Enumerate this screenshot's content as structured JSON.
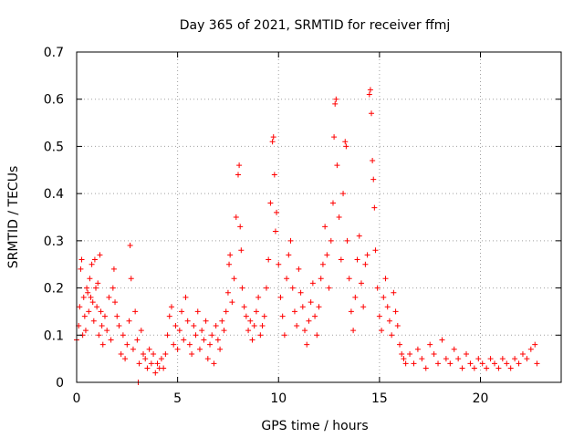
{
  "chart_data": {
    "type": "scatter",
    "title": "Day 365 of 2021, SRMTID for receiver ffmj",
    "xlabel": "GPS time / hours",
    "ylabel": "SRMTID / TECUs",
    "xlim": [
      0,
      24
    ],
    "ylim": [
      0,
      0.7
    ],
    "xticks": [
      0,
      5,
      10,
      15,
      20
    ],
    "xtick_labels": [
      "0",
      "5",
      "10",
      "15",
      "20"
    ],
    "yticks": [
      0,
      0.1,
      0.2,
      0.3,
      0.4,
      0.5,
      0.6,
      0.7
    ],
    "ytick_labels": [
      "0",
      "0.1",
      "0.2",
      "0.3",
      "0.4",
      "0.5",
      "0.6",
      "0.7"
    ],
    "grid": true,
    "marker": "+",
    "marker_color": "#ff0000",
    "series": [
      {
        "name": "SRMTID",
        "points": [
          [
            0.0,
            0.09
          ],
          [
            0.1,
            0.12
          ],
          [
            0.15,
            0.16
          ],
          [
            0.2,
            0.24
          ],
          [
            0.25,
            0.26
          ],
          [
            0.3,
            0.1
          ],
          [
            0.35,
            0.18
          ],
          [
            0.4,
            0.14
          ],
          [
            0.45,
            0.11
          ],
          [
            0.5,
            0.2
          ],
          [
            0.55,
            0.19
          ],
          [
            0.6,
            0.15
          ],
          [
            0.65,
            0.22
          ],
          [
            0.7,
            0.18
          ],
          [
            0.75,
            0.25
          ],
          [
            0.8,
            0.17
          ],
          [
            0.85,
            0.13
          ],
          [
            0.9,
            0.26
          ],
          [
            0.95,
            0.2
          ],
          [
            1.0,
            0.16
          ],
          [
            1.05,
            0.21
          ],
          [
            1.1,
            0.1
          ],
          [
            1.15,
            0.27
          ],
          [
            1.2,
            0.15
          ],
          [
            1.25,
            0.12
          ],
          [
            1.3,
            0.08
          ],
          [
            1.4,
            0.14
          ],
          [
            1.5,
            0.11
          ],
          [
            1.6,
            0.18
          ],
          [
            1.7,
            0.09
          ],
          [
            1.8,
            0.2
          ],
          [
            1.85,
            0.24
          ],
          [
            1.9,
            0.17
          ],
          [
            2.0,
            0.14
          ],
          [
            2.1,
            0.12
          ],
          [
            2.2,
            0.06
          ],
          [
            2.3,
            0.1
          ],
          [
            2.4,
            0.05
          ],
          [
            2.5,
            0.08
          ],
          [
            2.6,
            0.13
          ],
          [
            2.65,
            0.29
          ],
          [
            2.7,
            0.22
          ],
          [
            2.8,
            0.07
          ],
          [
            2.9,
            0.15
          ],
          [
            3.0,
            0.09
          ],
          [
            3.05,
            0.0
          ],
          [
            3.1,
            0.04
          ],
          [
            3.2,
            0.11
          ],
          [
            3.3,
            0.06
          ],
          [
            3.4,
            0.05
          ],
          [
            3.5,
            0.03
          ],
          [
            3.6,
            0.07
          ],
          [
            3.7,
            0.04
          ],
          [
            3.8,
            0.06
          ],
          [
            3.9,
            0.02
          ],
          [
            4.0,
            0.04
          ],
          [
            4.1,
            0.03
          ],
          [
            4.2,
            0.05
          ],
          [
            4.3,
            0.03
          ],
          [
            4.4,
            0.06
          ],
          [
            4.5,
            0.1
          ],
          [
            4.6,
            0.14
          ],
          [
            4.7,
            0.16
          ],
          [
            4.8,
            0.08
          ],
          [
            4.9,
            0.12
          ],
          [
            5.0,
            0.07
          ],
          [
            5.1,
            0.11
          ],
          [
            5.2,
            0.15
          ],
          [
            5.3,
            0.09
          ],
          [
            5.4,
            0.18
          ],
          [
            5.5,
            0.13
          ],
          [
            5.6,
            0.08
          ],
          [
            5.7,
            0.06
          ],
          [
            5.8,
            0.12
          ],
          [
            5.9,
            0.1
          ],
          [
            6.0,
            0.15
          ],
          [
            6.1,
            0.07
          ],
          [
            6.2,
            0.11
          ],
          [
            6.3,
            0.09
          ],
          [
            6.4,
            0.13
          ],
          [
            6.5,
            0.05
          ],
          [
            6.6,
            0.08
          ],
          [
            6.7,
            0.1
          ],
          [
            6.8,
            0.04
          ],
          [
            6.9,
            0.12
          ],
          [
            7.0,
            0.09
          ],
          [
            7.1,
            0.07
          ],
          [
            7.2,
            0.13
          ],
          [
            7.3,
            0.11
          ],
          [
            7.4,
            0.15
          ],
          [
            7.5,
            0.19
          ],
          [
            7.55,
            0.25
          ],
          [
            7.6,
            0.27
          ],
          [
            7.7,
            0.17
          ],
          [
            7.8,
            0.22
          ],
          [
            7.9,
            0.35
          ],
          [
            8.0,
            0.44
          ],
          [
            8.05,
            0.46
          ],
          [
            8.1,
            0.33
          ],
          [
            8.15,
            0.28
          ],
          [
            8.2,
            0.2
          ],
          [
            8.3,
            0.16
          ],
          [
            8.4,
            0.14
          ],
          [
            8.5,
            0.11
          ],
          [
            8.6,
            0.13
          ],
          [
            8.7,
            0.09
          ],
          [
            8.8,
            0.12
          ],
          [
            8.9,
            0.15
          ],
          [
            9.0,
            0.18
          ],
          [
            9.1,
            0.1
          ],
          [
            9.2,
            0.12
          ],
          [
            9.3,
            0.14
          ],
          [
            9.4,
            0.2
          ],
          [
            9.5,
            0.26
          ],
          [
            9.6,
            0.38
          ],
          [
            9.7,
            0.51
          ],
          [
            9.75,
            0.52
          ],
          [
            9.8,
            0.44
          ],
          [
            9.85,
            0.32
          ],
          [
            9.9,
            0.36
          ],
          [
            10.0,
            0.25
          ],
          [
            10.1,
            0.18
          ],
          [
            10.2,
            0.14
          ],
          [
            10.3,
            0.1
          ],
          [
            10.4,
            0.22
          ],
          [
            10.5,
            0.27
          ],
          [
            10.6,
            0.3
          ],
          [
            10.7,
            0.2
          ],
          [
            10.8,
            0.15
          ],
          [
            10.9,
            0.12
          ],
          [
            11.0,
            0.24
          ],
          [
            11.1,
            0.19
          ],
          [
            11.2,
            0.16
          ],
          [
            11.3,
            0.11
          ],
          [
            11.4,
            0.08
          ],
          [
            11.5,
            0.13
          ],
          [
            11.6,
            0.17
          ],
          [
            11.7,
            0.21
          ],
          [
            11.8,
            0.14
          ],
          [
            11.9,
            0.1
          ],
          [
            12.0,
            0.16
          ],
          [
            12.1,
            0.22
          ],
          [
            12.2,
            0.25
          ],
          [
            12.3,
            0.33
          ],
          [
            12.4,
            0.27
          ],
          [
            12.5,
            0.2
          ],
          [
            12.6,
            0.3
          ],
          [
            12.7,
            0.38
          ],
          [
            12.75,
            0.52
          ],
          [
            12.8,
            0.59
          ],
          [
            12.85,
            0.6
          ],
          [
            12.9,
            0.46
          ],
          [
            13.0,
            0.35
          ],
          [
            13.1,
            0.26
          ],
          [
            13.2,
            0.4
          ],
          [
            13.3,
            0.51
          ],
          [
            13.35,
            0.5
          ],
          [
            13.4,
            0.3
          ],
          [
            13.5,
            0.22
          ],
          [
            13.6,
            0.15
          ],
          [
            13.7,
            0.11
          ],
          [
            13.8,
            0.18
          ],
          [
            13.9,
            0.26
          ],
          [
            14.0,
            0.31
          ],
          [
            14.1,
            0.21
          ],
          [
            14.2,
            0.16
          ],
          [
            14.3,
            0.25
          ],
          [
            14.4,
            0.27
          ],
          [
            14.5,
            0.61
          ],
          [
            14.55,
            0.62
          ],
          [
            14.6,
            0.57
          ],
          [
            14.65,
            0.47
          ],
          [
            14.7,
            0.43
          ],
          [
            14.75,
            0.37
          ],
          [
            14.8,
            0.28
          ],
          [
            14.9,
            0.2
          ],
          [
            15.0,
            0.14
          ],
          [
            15.1,
            0.11
          ],
          [
            15.2,
            0.18
          ],
          [
            15.3,
            0.22
          ],
          [
            15.4,
            0.16
          ],
          [
            15.5,
            0.13
          ],
          [
            15.6,
            0.1
          ],
          [
            15.7,
            0.19
          ],
          [
            15.8,
            0.15
          ],
          [
            15.9,
            0.12
          ],
          [
            16.0,
            0.08
          ],
          [
            16.1,
            0.06
          ],
          [
            16.2,
            0.05
          ],
          [
            16.3,
            0.04
          ],
          [
            16.5,
            0.06
          ],
          [
            16.7,
            0.04
          ],
          [
            16.9,
            0.07
          ],
          [
            17.1,
            0.05
          ],
          [
            17.3,
            0.03
          ],
          [
            17.5,
            0.08
          ],
          [
            17.7,
            0.06
          ],
          [
            17.9,
            0.04
          ],
          [
            18.1,
            0.09
          ],
          [
            18.3,
            0.05
          ],
          [
            18.5,
            0.04
          ],
          [
            18.7,
            0.07
          ],
          [
            18.9,
            0.05
          ],
          [
            19.1,
            0.03
          ],
          [
            19.3,
            0.06
          ],
          [
            19.5,
            0.04
          ],
          [
            19.7,
            0.03
          ],
          [
            19.9,
            0.05
          ],
          [
            20.1,
            0.04
          ],
          [
            20.3,
            0.03
          ],
          [
            20.5,
            0.05
          ],
          [
            20.7,
            0.04
          ],
          [
            20.9,
            0.03
          ],
          [
            21.1,
            0.05
          ],
          [
            21.3,
            0.04
          ],
          [
            21.5,
            0.03
          ],
          [
            21.7,
            0.05
          ],
          [
            21.9,
            0.04
          ],
          [
            22.1,
            0.06
          ],
          [
            22.3,
            0.05
          ],
          [
            22.5,
            0.07
          ],
          [
            22.7,
            0.08
          ],
          [
            22.8,
            0.04
          ]
        ]
      }
    ]
  }
}
